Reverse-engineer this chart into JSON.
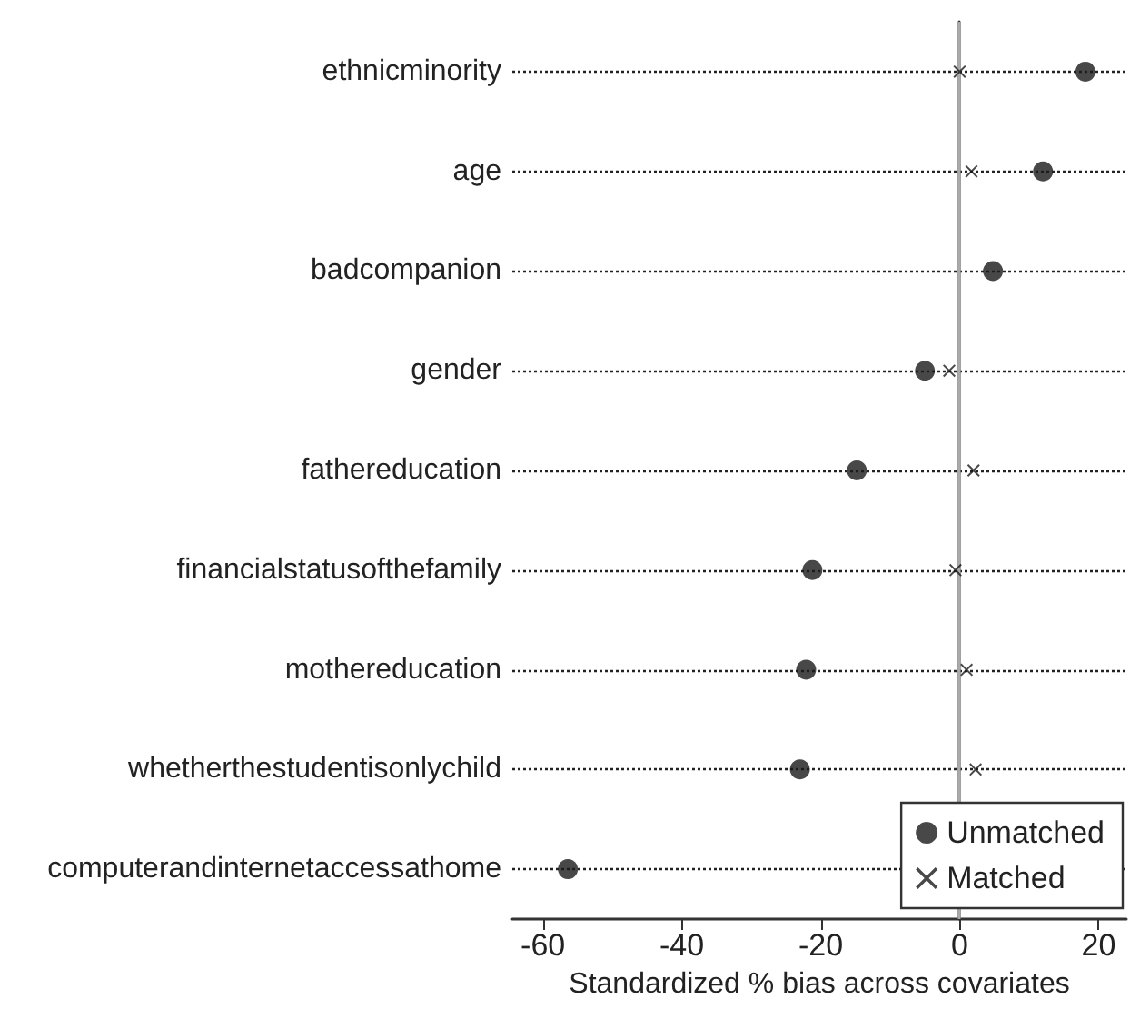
{
  "chart_data": {
    "type": "scatter",
    "xlabel": "Standardized % bias across covariates",
    "categories": [
      "ethnicminority",
      "age",
      "badcompanion",
      "gender",
      "fathereducation",
      "financialstatusofthefamily",
      "mothereducation",
      "whetherthestudentisonlychild",
      "computerandinternetaccessathome"
    ],
    "series": [
      {
        "name": "Unmatched",
        "color": "#1a1a1a",
        "marker": "circle",
        "values": [
          18.1,
          12.0,
          4.8,
          -5.0,
          -14.8,
          -21.2,
          -22.1,
          -23.0,
          -56.4
        ]
      },
      {
        "name": "Matched",
        "color": "#1a1a1a",
        "marker": "cross",
        "values": [
          0,
          1.7,
          null,
          -1.5,
          2.0,
          -0.6,
          1.0,
          2.3,
          null
        ]
      }
    ],
    "orientation": "horizontal",
    "xlim": [
      -64.4,
      24
    ],
    "xticks": [
      -60,
      -40,
      -20,
      0,
      20
    ],
    "grid": "y",
    "ref_lines": [
      {
        "axis": "x",
        "value": 0,
        "color": "#aaaaaa"
      }
    ],
    "legend": "bottom right"
  }
}
